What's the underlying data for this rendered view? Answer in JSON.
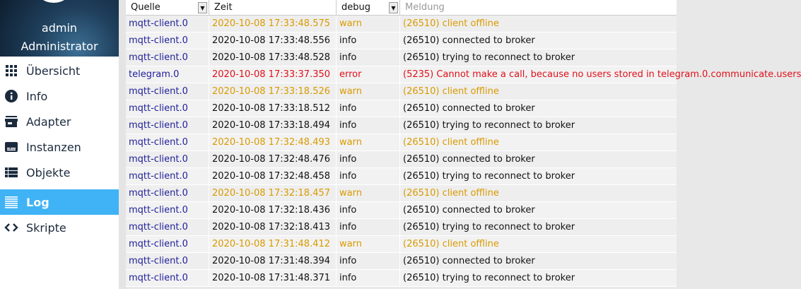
{
  "sidebar": {
    "user": {
      "name": "admin",
      "role": "Administrator"
    },
    "items": [
      {
        "label": "Übersicht",
        "icon": "grid-icon",
        "active": false
      },
      {
        "label": "Info",
        "icon": "info-icon",
        "active": false
      },
      {
        "label": "Adapter",
        "icon": "store-icon",
        "active": false
      },
      {
        "label": "Instanzen",
        "icon": "subtitles-icon",
        "active": false
      },
      {
        "label": "Objekte",
        "icon": "list-icon",
        "active": false
      },
      {
        "label": "Log",
        "icon": "lines-icon",
        "active": true
      },
      {
        "label": "Skripte",
        "icon": "code-icon",
        "active": false
      }
    ],
    "active_color": "#3fb3f5"
  },
  "log": {
    "headers": {
      "source": "Quelle",
      "time": "Zeit",
      "level": "debug",
      "message_placeholder": "Meldung"
    },
    "colors": {
      "info": "#111111",
      "warn": "#d99a00",
      "error": "#e0101a",
      "source": "#1f1f9a"
    },
    "rows": [
      {
        "source": "mqtt-client.0",
        "time": "2020-10-08 17:33:48.575",
        "level": "warn",
        "message": "(26510) client offline"
      },
      {
        "source": "mqtt-client.0",
        "time": "2020-10-08 17:33:48.556",
        "level": "info",
        "message": "(26510) connected to broker"
      },
      {
        "source": "mqtt-client.0",
        "time": "2020-10-08 17:33:48.528",
        "level": "info",
        "message": "(26510) trying to reconnect to broker"
      },
      {
        "source": "telegram.0",
        "time": "2020-10-08 17:33:37.350",
        "level": "error",
        "message": "(5235) Cannot make a call, because no users stored in telegram.0.communicate.users"
      },
      {
        "source": "mqtt-client.0",
        "time": "2020-10-08 17:33:18.526",
        "level": "warn",
        "message": "(26510) client offline"
      },
      {
        "source": "mqtt-client.0",
        "time": "2020-10-08 17:33:18.512",
        "level": "info",
        "message": "(26510) connected to broker"
      },
      {
        "source": "mqtt-client.0",
        "time": "2020-10-08 17:33:18.494",
        "level": "info",
        "message": "(26510) trying to reconnect to broker"
      },
      {
        "source": "mqtt-client.0",
        "time": "2020-10-08 17:32:48.493",
        "level": "warn",
        "message": "(26510) client offline"
      },
      {
        "source": "mqtt-client.0",
        "time": "2020-10-08 17:32:48.476",
        "level": "info",
        "message": "(26510) connected to broker"
      },
      {
        "source": "mqtt-client.0",
        "time": "2020-10-08 17:32:48.458",
        "level": "info",
        "message": "(26510) trying to reconnect to broker"
      },
      {
        "source": "mqtt-client.0",
        "time": "2020-10-08 17:32:18.457",
        "level": "warn",
        "message": "(26510) client offline"
      },
      {
        "source": "mqtt-client.0",
        "time": "2020-10-08 17:32:18.436",
        "level": "info",
        "message": "(26510) connected to broker"
      },
      {
        "source": "mqtt-client.0",
        "time": "2020-10-08 17:32:18.413",
        "level": "info",
        "message": "(26510) trying to reconnect to broker"
      },
      {
        "source": "mqtt-client.0",
        "time": "2020-10-08 17:31:48.412",
        "level": "warn",
        "message": "(26510) client offline"
      },
      {
        "source": "mqtt-client.0",
        "time": "2020-10-08 17:31:48.394",
        "level": "info",
        "message": "(26510) connected to broker"
      },
      {
        "source": "mqtt-client.0",
        "time": "2020-10-08 17:31:48.371",
        "level": "info",
        "message": "(26510) trying to reconnect to broker"
      }
    ]
  }
}
